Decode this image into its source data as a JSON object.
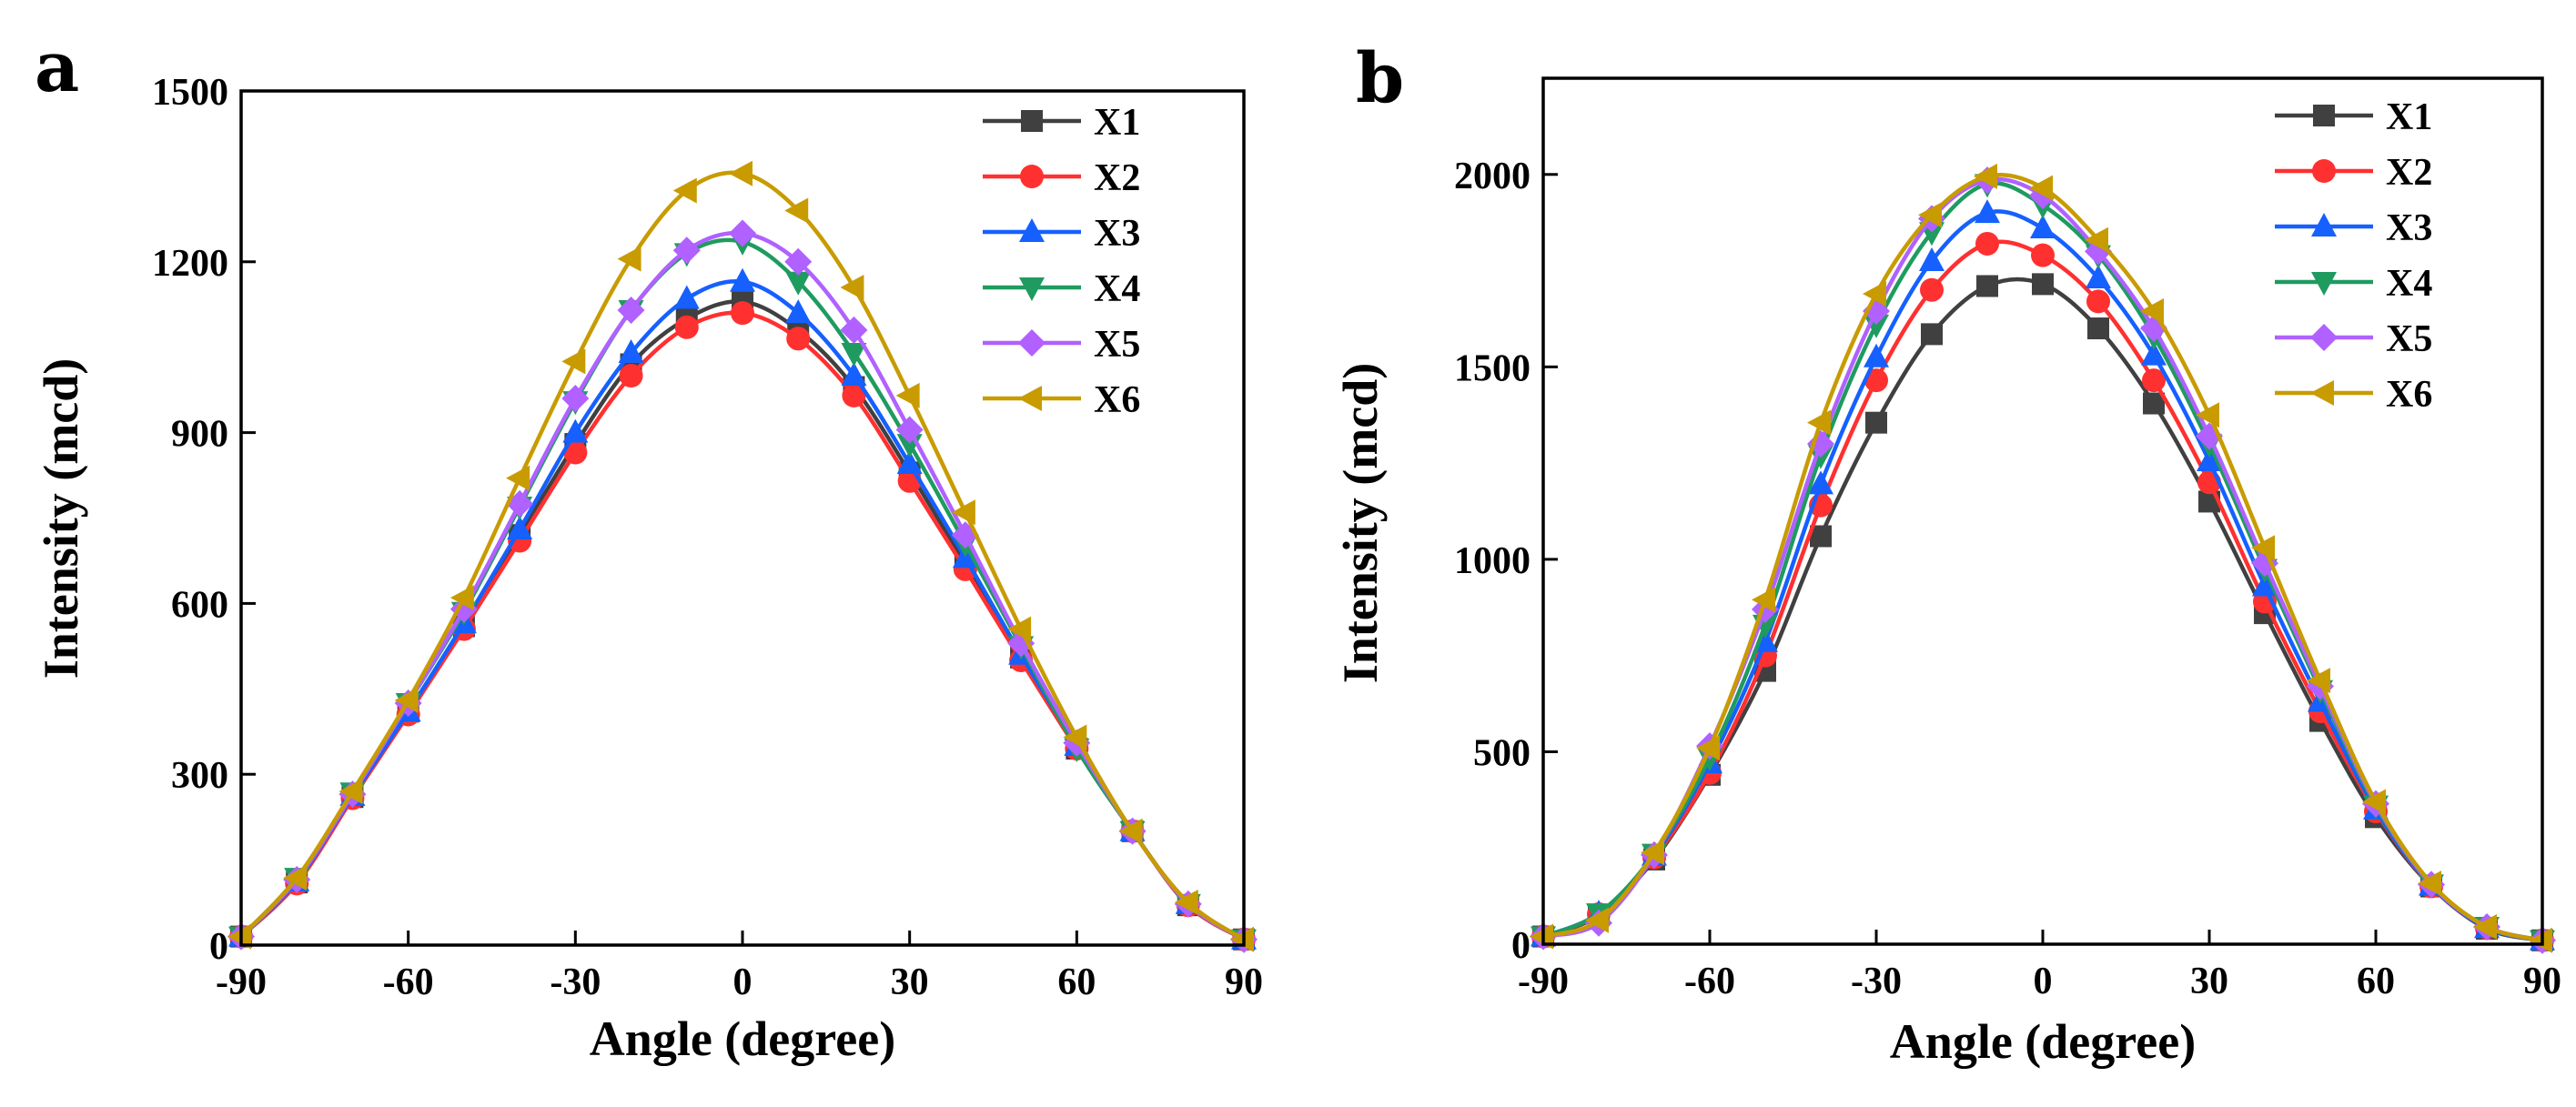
{
  "chart_data": [
    {
      "panel": "a",
      "type": "line",
      "xlabel": "Angle (degree)",
      "ylabel": "Intensity (mcd)",
      "xlim": [
        -90,
        90
      ],
      "ylim": [
        0,
        1500
      ],
      "xticks": [
        -90,
        -60,
        -30,
        0,
        30,
        60,
        90
      ],
      "yticks": [
        0,
        300,
        600,
        900,
        1200,
        1500
      ],
      "legend_position": "top-right",
      "x": [
        -90,
        -80,
        -70,
        -60,
        -50,
        -40,
        -30,
        -20,
        -10,
        0,
        10,
        20,
        30,
        40,
        50,
        60,
        70,
        80,
        90
      ],
      "series": [
        {
          "name": "X1",
          "color": "#404040",
          "marker": "square",
          "values": [
            15,
            110,
            260,
            410,
            560,
            720,
            880,
            1020,
            1100,
            1130,
            1080,
            980,
            830,
            670,
            505,
            345,
            200,
            70,
            10
          ]
        },
        {
          "name": "X2",
          "color": "#ff3030",
          "marker": "circle",
          "values": [
            15,
            108,
            258,
            405,
            555,
            710,
            865,
            1000,
            1085,
            1110,
            1065,
            965,
            815,
            660,
            500,
            345,
            200,
            70,
            10
          ]
        },
        {
          "name": "X3",
          "color": "#1560ff",
          "marker": "triangle-up",
          "values": [
            15,
            112,
            262,
            410,
            565,
            730,
            900,
            1040,
            1135,
            1165,
            1110,
            1000,
            845,
            680,
            510,
            350,
            200,
            72,
            10
          ]
        },
        {
          "name": "X4",
          "color": "#1f9b60",
          "marker": "triangle-down",
          "values": [
            15,
            118,
            268,
            425,
            585,
            770,
            955,
            1115,
            1215,
            1235,
            1165,
            1040,
            880,
            705,
            525,
            345,
            200,
            72,
            10
          ]
        },
        {
          "name": "X5",
          "color": "#b061ff",
          "marker": "diamond",
          "values": [
            15,
            115,
            265,
            425,
            590,
            775,
            960,
            1115,
            1220,
            1250,
            1200,
            1080,
            905,
            720,
            530,
            355,
            200,
            72,
            10
          ]
        },
        {
          "name": "X6",
          "color": "#c89b00",
          "marker": "triangle-left",
          "values": [
            15,
            118,
            270,
            430,
            610,
            820,
            1025,
            1205,
            1325,
            1355,
            1290,
            1155,
            965,
            760,
            555,
            365,
            200,
            75,
            10
          ]
        }
      ]
    },
    {
      "panel": "b",
      "type": "line",
      "xlabel": "Angle (degree)",
      "ylabel": "Intensity (mcd)",
      "xlim": [
        -90,
        90
      ],
      "ylim": [
        0,
        2250
      ],
      "xticks": [
        -90,
        -60,
        -30,
        0,
        30,
        60,
        90
      ],
      "yticks": [
        0,
        500,
        1000,
        1500,
        2000
      ],
      "legend_position": "top-right",
      "x": [
        -90,
        -80,
        -70,
        -60,
        -50,
        -40,
        -30,
        -20,
        -10,
        0,
        10,
        20,
        30,
        40,
        50,
        60,
        70,
        80,
        90
      ],
      "series": [
        {
          "name": "X1",
          "color": "#404040",
          "marker": "square",
          "values": [
            20,
            75,
            220,
            440,
            710,
            1060,
            1355,
            1585,
            1710,
            1715,
            1600,
            1405,
            1150,
            860,
            580,
            330,
            150,
            40,
            10
          ]
        },
        {
          "name": "X2",
          "color": "#ff3030",
          "marker": "circle",
          "values": [
            20,
            78,
            225,
            445,
            750,
            1140,
            1465,
            1700,
            1820,
            1790,
            1670,
            1465,
            1200,
            890,
            605,
            345,
            150,
            42,
            10
          ]
        },
        {
          "name": "X3",
          "color": "#1560ff",
          "marker": "triangle-up",
          "values": [
            20,
            80,
            230,
            470,
            785,
            1195,
            1525,
            1775,
            1900,
            1860,
            1730,
            1530,
            1255,
            930,
            630,
            350,
            152,
            42,
            10
          ]
        },
        {
          "name": "X4",
          "color": "#1f9b60",
          "marker": "triangle-down",
          "values": [
            20,
            80,
            235,
            485,
            830,
            1270,
            1610,
            1850,
            1975,
            1920,
            1790,
            1580,
            1300,
            975,
            660,
            360,
            155,
            45,
            10
          ]
        },
        {
          "name": "X5",
          "color": "#b061ff",
          "marker": "diamond",
          "values": [
            20,
            55,
            232,
            515,
            870,
            1300,
            1645,
            1885,
            1985,
            1945,
            1800,
            1600,
            1320,
            990,
            670,
            365,
            155,
            45,
            10
          ]
        },
        {
          "name": "X6",
          "color": "#c89b00",
          "marker": "triangle-left",
          "values": [
            20,
            62,
            238,
            510,
            895,
            1355,
            1690,
            1895,
            1995,
            1965,
            1830,
            1645,
            1375,
            1030,
            685,
            370,
            158,
            45,
            10
          ]
        }
      ]
    }
  ]
}
